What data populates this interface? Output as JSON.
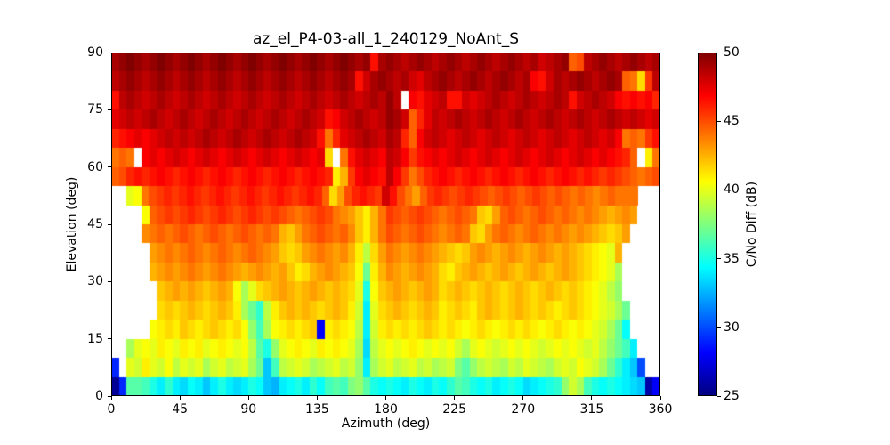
{
  "chart_data": {
    "type": "heatmap",
    "title": "az_el_P4-03-all_1_240129_NoAnt_S",
    "xlabel": "Azimuth (deg)",
    "ylabel": "Elevation (deg)",
    "colorbar_label": "C/No Diff (dB)",
    "colormap": "jet",
    "xlim": [
      0,
      360
    ],
    "ylim": [
      0,
      90
    ],
    "clim": [
      25,
      50
    ],
    "x_ticks": [
      0,
      45,
      90,
      135,
      180,
      225,
      270,
      315,
      360
    ],
    "y_ticks": [
      0,
      15,
      30,
      45,
      60,
      75,
      90
    ],
    "colorbar_ticks": [
      25,
      30,
      35,
      40,
      45,
      50
    ],
    "azimuth_bin_deg": 5,
    "elevation_bin_deg": 5,
    "grid": false,
    "note_rows": "values[0] = elevation 0-5 deg (bottom row), values[17] = 85-90 deg; 72 azimuth bins of 5 deg; null = no data (white)",
    "values": [
      [
        25.5,
        29,
        36.5,
        36.5,
        36,
        35,
        34,
        35.5,
        34,
        33.5,
        34.5,
        34,
        33,
        34,
        35,
        34,
        33.5,
        34,
        35,
        34.5,
        33,
        32.5,
        34,
        34.5,
        35,
        34,
        35.5,
        34.5,
        36,
        36.5,
        36,
        37.5,
        38,
        36.5,
        35,
        34.5,
        35,
        34.5,
        34,
        35,
        34.5,
        34,
        35,
        34.5,
        35.5,
        36.5,
        36,
        35,
        34.5,
        35,
        34,
        34.5,
        35,
        34.5,
        33.5,
        34,
        34.5,
        35,
        35.5,
        38,
        39.5,
        38.5,
        36,
        35,
        34.5,
        35,
        34.5,
        34,
        33.5,
        33,
        26,
        28
      ],
      [
        29,
        null,
        40,
        39.5,
        41,
        40,
        39.5,
        40.5,
        39,
        40,
        39.5,
        40,
        38.5,
        39.5,
        40,
        39,
        39.5,
        40,
        38.5,
        37,
        33,
        36,
        39,
        39.5,
        40,
        39.5,
        38.5,
        39,
        39.5,
        40,
        39,
        39.5,
        38,
        34,
        38.5,
        39.5,
        40,
        39,
        39.5,
        40,
        39,
        39.5,
        38.5,
        39,
        39.5,
        37.5,
        36.5,
        38,
        39,
        39.5,
        39,
        38.5,
        39.5,
        39,
        40,
        39.5,
        39,
        38.5,
        39.5,
        40,
        39.5,
        40.5,
        40,
        39.5,
        38.5,
        37,
        35.5,
        34,
        33,
        30,
        null,
        null
      ],
      [
        null,
        null,
        38.5,
        40,
        40.5,
        40,
        41,
        40.5,
        40,
        41,
        40.5,
        41,
        40,
        40.5,
        41,
        40.5,
        40,
        40.5,
        39,
        36.5,
        35,
        38,
        40,
        40.5,
        41,
        40.5,
        40,
        41,
        40.5,
        41,
        40.5,
        40,
        38.5,
        33.5,
        39,
        40,
        40.5,
        40,
        40.5,
        41,
        40.5,
        40,
        40.5,
        40,
        40.5,
        39.5,
        38.5,
        40,
        40.5,
        40,
        39.5,
        40,
        40.5,
        40,
        40.5,
        40,
        39.5,
        40,
        40.5,
        40,
        40.5,
        40,
        39.5,
        40,
        39,
        38,
        37,
        36,
        34,
        null,
        null,
        null
      ],
      [
        null,
        null,
        null,
        null,
        null,
        40.5,
        41,
        41.5,
        41,
        42,
        41.5,
        41,
        41.5,
        42,
        41.5,
        41,
        41.5,
        40.5,
        38,
        36,
        38.5,
        40.5,
        41,
        41.5,
        41,
        41.5,
        42,
        28,
        41,
        41.5,
        41,
        40.5,
        39,
        34,
        39.5,
        41,
        41.5,
        41,
        41.5,
        41,
        41.5,
        42,
        41.5,
        41,
        41.5,
        41,
        40.5,
        41,
        41.5,
        41,
        40.5,
        41,
        41.5,
        41,
        41.5,
        41,
        40.5,
        41,
        41.5,
        41,
        40.5,
        41,
        40.5,
        40,
        39.5,
        38.5,
        37,
        34.5,
        null,
        null,
        null,
        null
      ],
      [
        null,
        null,
        null,
        null,
        null,
        null,
        41.5,
        42,
        41.5,
        42,
        42.5,
        42,
        41.5,
        42,
        42.5,
        42,
        41,
        38.5,
        37,
        35.5,
        39,
        41,
        42,
        42.5,
        42,
        42.5,
        42,
        41.5,
        42,
        42.5,
        42,
        41,
        39.5,
        34,
        40,
        41.5,
        42,
        42.5,
        42,
        41.5,
        42,
        42.5,
        42,
        41,
        41.5,
        42,
        41.5,
        41,
        42,
        42.5,
        42,
        41.5,
        42,
        42.5,
        42,
        41.5,
        42,
        41.5,
        41,
        41.5,
        42,
        41.5,
        41,
        40.5,
        40,
        39.5,
        38.5,
        37,
        null,
        null,
        null,
        null
      ],
      [
        null,
        null,
        null,
        null,
        null,
        null,
        42,
        42.5,
        43,
        42.5,
        43,
        42.5,
        42,
        42.5,
        43,
        42.5,
        40.5,
        38.5,
        40,
        41.5,
        42,
        42.5,
        43,
        42.5,
        42,
        42.5,
        43,
        42.5,
        42,
        42.5,
        42,
        41.5,
        40,
        35,
        40.5,
        42,
        42.5,
        43,
        42.5,
        42,
        42.5,
        43,
        42.5,
        41.5,
        42,
        42.5,
        42,
        41.5,
        42,
        42.5,
        42,
        41.5,
        42,
        42.5,
        42,
        41.5,
        42,
        42.5,
        42,
        41.5,
        42,
        41.5,
        41,
        40.5,
        40,
        39,
        38,
        null,
        null,
        null,
        null,
        null
      ],
      [
        null,
        null,
        null,
        null,
        null,
        42.5,
        43,
        43.5,
        43,
        43.5,
        44,
        43.5,
        43,
        43.5,
        44,
        43.5,
        43,
        42.5,
        43,
        43.5,
        43,
        42.5,
        43,
        42,
        41,
        41.5,
        42.5,
        43,
        43.5,
        43,
        42.5,
        42,
        40.5,
        37,
        41,
        42.5,
        43.5,
        43,
        42.5,
        43,
        43.5,
        43,
        42.5,
        41.5,
        41,
        42,
        42.5,
        43,
        42.5,
        42,
        42.5,
        43,
        42.5,
        42,
        42.5,
        43,
        42.5,
        42,
        42.5,
        43,
        42.5,
        42,
        41.5,
        41,
        40.5,
        40,
        38.5,
        null,
        null,
        null,
        null,
        null
      ],
      [
        null,
        null,
        null,
        null,
        null,
        43,
        43.5,
        44,
        43.5,
        44,
        44.5,
        44,
        43.5,
        44,
        44.5,
        44,
        43.5,
        44,
        44.5,
        44,
        43.5,
        43,
        42,
        41.5,
        42,
        43,
        43.5,
        44,
        43.5,
        43,
        43.5,
        42.5,
        41,
        39,
        41.5,
        43,
        44,
        43.5,
        43,
        43.5,
        44,
        43.5,
        43,
        42.5,
        42,
        41.5,
        42,
        43,
        43.5,
        43,
        42.5,
        43,
        43.5,
        43,
        42.5,
        43,
        43.5,
        43,
        42.5,
        43,
        42.5,
        42,
        41.5,
        41,
        40.5,
        40,
        42.5,
        null,
        null,
        null,
        null,
        null
      ],
      [
        null,
        null,
        null,
        null,
        43.5,
        44,
        44.5,
        44,
        44.5,
        45,
        44.5,
        44,
        44.5,
        45,
        44.5,
        44,
        44.5,
        45,
        44.5,
        44,
        44.5,
        44,
        42.5,
        42,
        43,
        44,
        44.5,
        45,
        44.5,
        44,
        44.5,
        43.5,
        42,
        41,
        42.5,
        44,
        45,
        44.5,
        44,
        44.5,
        45,
        44.5,
        44,
        43.5,
        44,
        44.5,
        44,
        42,
        41.5,
        43,
        44,
        44.5,
        44,
        43.5,
        44,
        44.5,
        44,
        43.5,
        44,
        43.5,
        43,
        43.5,
        43,
        42.5,
        42,
        41.5,
        42,
        43,
        null,
        null,
        null,
        null
      ],
      [
        null,
        null,
        null,
        null,
        40.5,
        44.5,
        45,
        45.5,
        45,
        45.5,
        46,
        45.5,
        45,
        45.5,
        46,
        45.5,
        45,
        45.5,
        46,
        45.5,
        45,
        45.5,
        45,
        44.5,
        44,
        44.5,
        45,
        45.5,
        45,
        44,
        43.5,
        43,
        42,
        41,
        42.5,
        44,
        45.5,
        45,
        44.5,
        45,
        45.5,
        45,
        44.5,
        44,
        44.5,
        45,
        44.5,
        44,
        42,
        41.5,
        43,
        44.5,
        45,
        44.5,
        44,
        44.5,
        45,
        44.5,
        44,
        44.5,
        44,
        43.5,
        44,
        43.5,
        43,
        42.5,
        43,
        43.5,
        43,
        null,
        null,
        null
      ],
      [
        null,
        null,
        40,
        40.5,
        44,
        45,
        45.5,
        46,
        45.5,
        46,
        46.5,
        46,
        45.5,
        46,
        46.5,
        46,
        45.5,
        46,
        46.5,
        46,
        45.5,
        46,
        46.5,
        46,
        45.5,
        46,
        46.5,
        46,
        44.5,
        41.5,
        43,
        45,
        46,
        46.5,
        46,
        45.5,
        48,
        46.5,
        45,
        44,
        43,
        44.5,
        45.5,
        46,
        45.5,
        45,
        45.5,
        46,
        45.5,
        45,
        44.5,
        45,
        45.5,
        45,
        44.5,
        45,
        45.5,
        45,
        44.5,
        45,
        44.5,
        44,
        44.5,
        44,
        43.5,
        44,
        44.5,
        44,
        44,
        44,
        null,
        null,
        null
      ],
      [
        44.5,
        45,
        46,
        46.5,
        46,
        46.5,
        47,
        46.5,
        46,
        46.5,
        47,
        46.5,
        46,
        46.5,
        47,
        46.5,
        46,
        46.5,
        47,
        46.5,
        46,
        46.5,
        47,
        46.5,
        46,
        46.5,
        47,
        46.5,
        46,
        41,
        42.5,
        45.5,
        47,
        47.5,
        47,
        46.5,
        48.5,
        47,
        45.5,
        44,
        45,
        46,
        46.5,
        47,
        46.5,
        46,
        46.5,
        47,
        46.5,
        46,
        46.5,
        47,
        46.5,
        46,
        46.5,
        47,
        46.5,
        46,
        46.5,
        47,
        46.5,
        46,
        46.5,
        46,
        45.5,
        46,
        45.5,
        45,
        44.5,
        44,
        44.5,
        45
      ],
      [
        44,
        44.5,
        44,
        null,
        47,
        47.5,
        47,
        47.5,
        48,
        47.5,
        47,
        47.5,
        48,
        47.5,
        47,
        47.5,
        48,
        47.5,
        47,
        47.5,
        48,
        47.5,
        47,
        47.5,
        48,
        47.5,
        47,
        47.5,
        41.5,
        null,
        44,
        46.5,
        47.5,
        48,
        47.5,
        47,
        48.5,
        48,
        47,
        45.5,
        46.5,
        47,
        47.5,
        47,
        47.5,
        48,
        47.5,
        47,
        47.5,
        48,
        47.5,
        47,
        47.5,
        48,
        47.5,
        47,
        47.5,
        48,
        47.5,
        47,
        47.5,
        48,
        47.5,
        47,
        47.5,
        47,
        46.5,
        46,
        44.5,
        null,
        41,
        44
      ],
      [
        46,
        46.5,
        47,
        47.5,
        47,
        47.5,
        48,
        48.5,
        48,
        48.5,
        48,
        48.5,
        49,
        48.5,
        48,
        48.5,
        49,
        48.5,
        48,
        48.5,
        49,
        48.5,
        48,
        48.5,
        49,
        48.5,
        48,
        46.5,
        44,
        46,
        47.5,
        48,
        48.5,
        49,
        48.5,
        48,
        49,
        48.5,
        46,
        44.5,
        47,
        48,
        48.5,
        48,
        47.5,
        48,
        48.5,
        48,
        47.5,
        48,
        48.5,
        48,
        47.5,
        48,
        48.5,
        48,
        47.5,
        48,
        48.5,
        48,
        47.5,
        48,
        48.5,
        48,
        47.5,
        48,
        47,
        44,
        44.5,
        44,
        45.5,
        46.5
      ],
      [
        47.5,
        48,
        48.5,
        48,
        48.5,
        49,
        48.5,
        48,
        48.5,
        49,
        48.5,
        48,
        48.5,
        49,
        48.5,
        48,
        48.5,
        49,
        48.5,
        48,
        48.5,
        49,
        48.5,
        48,
        48.5,
        49,
        48.5,
        48,
        46.5,
        47,
        48,
        48.5,
        49,
        48.5,
        48,
        48.5,
        49.5,
        49,
        48,
        44.5,
        46,
        47.5,
        48.5,
        48,
        48.5,
        49,
        48.5,
        48,
        48.5,
        49,
        48.5,
        48,
        48.5,
        49,
        48.5,
        48,
        48.5,
        49,
        48.5,
        48,
        48.5,
        49,
        48.5,
        48,
        48.5,
        49,
        48.5,
        48,
        48.5,
        48,
        47.5,
        48
      ],
      [
        46.5,
        48.5,
        49,
        48.5,
        48,
        48.5,
        49,
        48.5,
        48,
        48.5,
        49,
        48.5,
        48,
        48.5,
        49,
        48.5,
        48,
        48.5,
        49,
        48.5,
        48,
        48.5,
        49,
        48.5,
        48,
        48.5,
        49,
        48.5,
        48,
        48.5,
        49,
        48.5,
        48,
        48.5,
        49,
        48.5,
        49.5,
        48.5,
        null,
        47,
        46.5,
        47.5,
        48,
        48.5,
        46.5,
        46.5,
        48,
        47.5,
        48,
        48.5,
        49,
        48.5,
        48,
        48.5,
        49,
        48.5,
        48,
        48.5,
        49,
        48.5,
        46.5,
        48,
        48.5,
        49,
        48.5,
        48,
        47,
        46.5,
        47,
        46.5,
        47,
        46
      ],
      [
        48.5,
        49,
        49.5,
        49,
        48.5,
        49,
        49.5,
        49,
        48.5,
        49,
        49.5,
        49,
        48.5,
        49,
        49.5,
        49,
        48.5,
        49,
        49.5,
        49,
        48.5,
        49,
        49.5,
        49,
        48.5,
        49,
        49.5,
        49,
        48.5,
        49,
        49.5,
        49,
        46.5,
        48,
        49,
        49.5,
        49,
        48.5,
        49,
        48,
        47.5,
        48.5,
        49,
        49.5,
        49,
        48.5,
        49,
        49.5,
        49,
        48.5,
        49,
        49.5,
        49,
        48.5,
        49,
        47,
        46.5,
        48,
        49,
        48.5,
        49,
        49.5,
        49,
        48.5,
        49,
        49.5,
        49,
        44.5,
        44,
        41.5,
        45.5,
        48.5
      ],
      [
        49,
        49.5,
        50,
        49.5,
        49,
        49.5,
        50,
        49.5,
        49,
        49.5,
        50,
        49.5,
        49,
        49.5,
        50,
        49.5,
        49,
        49.5,
        50,
        49.5,
        49,
        49.5,
        50,
        49.5,
        49,
        49.5,
        50,
        49.5,
        49,
        49.5,
        50,
        49.5,
        49,
        49.5,
        46.5,
        49,
        49.5,
        49,
        48.5,
        49,
        49.5,
        49,
        48.5,
        49,
        49.5,
        49,
        48.5,
        49,
        49.5,
        49,
        48.5,
        49,
        49.5,
        49,
        48.5,
        49,
        48,
        48.5,
        49,
        49.5,
        44.5,
        45,
        48.5,
        49,
        49.5,
        49,
        48.5,
        49,
        49.5,
        49,
        48.5,
        49
      ]
    ]
  }
}
